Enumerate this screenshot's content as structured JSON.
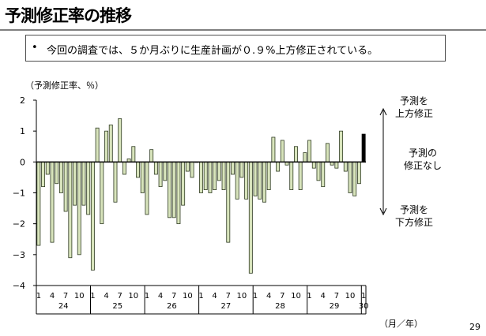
{
  "slide": {
    "title": "予測修正率の推移",
    "summary_bullet": "•",
    "summary": "今回の調査では、５か月ぶりに生産計画が０.９%上方修正されている。",
    "unit_label": "（予測修正率、％）",
    "period_label": "（月／年）",
    "page_number": "29"
  },
  "legend": {
    "upper": [
      "予測を",
      "上方修正"
    ],
    "middle": [
      "予測の",
      "修正なし"
    ],
    "lower": [
      "予測を",
      "下方修正"
    ]
  },
  "colors": {
    "bar_fill": "#d8e4bc",
    "bar_stroke": "#2f3b22",
    "latest_bar": "#000000",
    "axis": "#000000"
  },
  "chart_data": {
    "type": "bar",
    "ylim": [
      -4,
      2
    ],
    "y_ticks": [
      2,
      1,
      0,
      -1,
      -2,
      -3,
      -4
    ],
    "month_tick_labels": [
      "1",
      "4",
      "7",
      "10"
    ],
    "years": [
      "24",
      "25",
      "26",
      "27",
      "28",
      "29",
      "30"
    ],
    "grid": false,
    "values": [
      -2.7,
      -0.8,
      -0.4,
      -2.6,
      -0.7,
      -1.0,
      -1.6,
      -3.1,
      -1.4,
      -3.0,
      -1.4,
      -1.7,
      -3.5,
      1.1,
      -2.0,
      1.0,
      1.2,
      -1.3,
      1.4,
      -0.4,
      0.1,
      0.5,
      -0.5,
      -1.0,
      -1.7,
      0.4,
      -0.4,
      -0.8,
      -0.6,
      -1.8,
      -1.8,
      -2.0,
      -1.4,
      -0.3,
      -0.5,
      0.0,
      -1.0,
      -0.9,
      -1.0,
      -0.9,
      -0.6,
      -0.9,
      -2.6,
      -0.4,
      -1.2,
      -0.5,
      -1.2,
      -3.6,
      -1.1,
      -1.2,
      -1.3,
      -0.9,
      0.8,
      -0.3,
      0.7,
      -0.1,
      -0.9,
      0.5,
      -0.9,
      0.3,
      0.7,
      -0.2,
      -0.6,
      -0.8,
      0.6,
      -0.1,
      -0.2,
      1.0,
      -0.3,
      -1.0,
      -1.1,
      -0.7,
      0.9
    ],
    "highlight_last": true
  }
}
